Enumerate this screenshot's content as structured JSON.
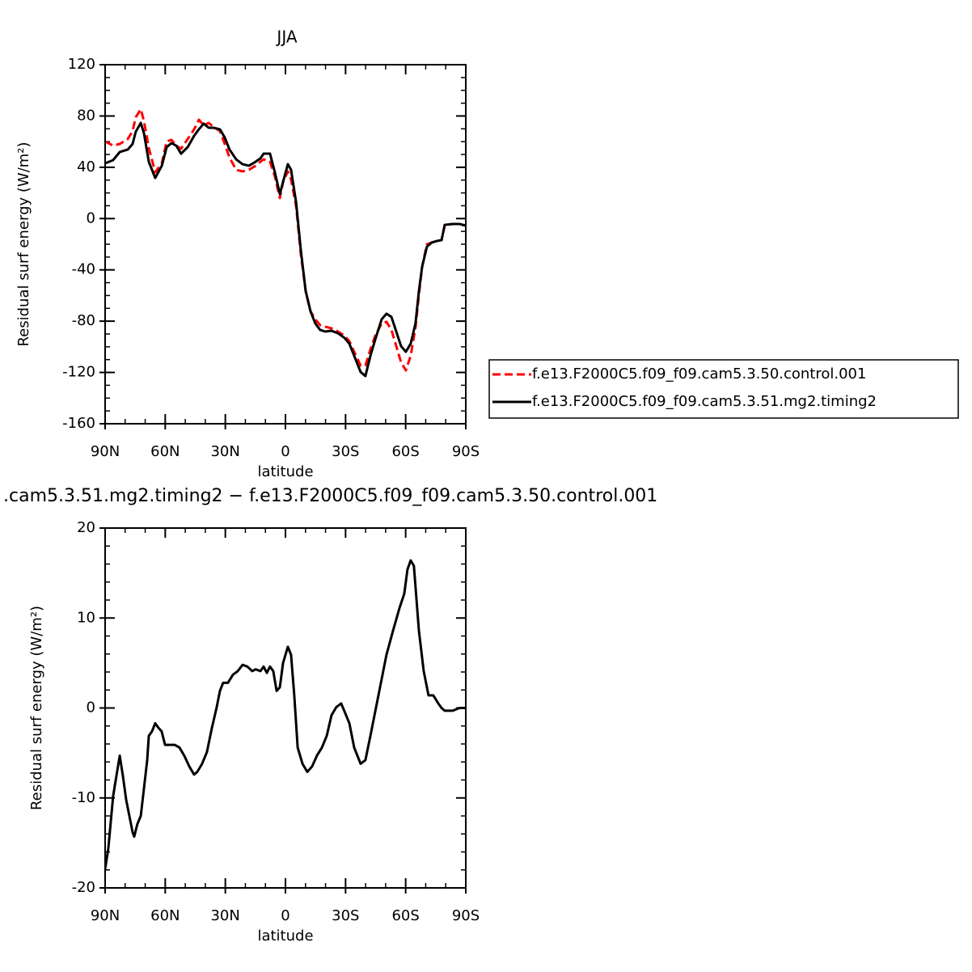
{
  "chart_data": [
    {
      "type": "line",
      "title": "JJA",
      "xlabel": "latitude",
      "ylabel": "Residual surf energy (W/m²)",
      "xlim": [
        90,
        -90
      ],
      "xticks": [
        {
          "value": 90,
          "label": "90N"
        },
        {
          "value": 60,
          "label": "60N"
        },
        {
          "value": 30,
          "label": "30N"
        },
        0,
        {
          "value": -30,
          "label": "30S"
        },
        {
          "value": -60,
          "label": "60S"
        },
        {
          "value": -90,
          "label": "90S"
        }
      ],
      "ylim": [
        -160,
        120
      ],
      "yticks": [
        -160,
        -120,
        -80,
        -40,
        0,
        40,
        80,
        120
      ],
      "legend": "right",
      "x": [
        90,
        86.0,
        82.7,
        78.7,
        76.3,
        74.7,
        72.2,
        70.6,
        68.2,
        65.0,
        61.7,
        59.3,
        56.9,
        54.5,
        52.1,
        48.8,
        45.6,
        43.2,
        40.8,
        38.3,
        35.9,
        32.7,
        30.3,
        27.9,
        24.6,
        21.4,
        18.2,
        14.9,
        12.5,
        10.9,
        7.7,
        5.3,
        2.8,
        1.2,
        -1.2,
        -2.8,
        -5.3,
        -7.7,
        -10.1,
        -12.5,
        -14.9,
        -17.3,
        -19.8,
        -23.0,
        -26.2,
        -29.5,
        -31.9,
        -34.3,
        -37.5,
        -39.9,
        -42.4,
        -44.8,
        -48.0,
        -50.4,
        -52.9,
        -55.3,
        -57.7,
        -60.1,
        -62.5,
        -64.9,
        -66.6,
        -68.2,
        -70.6,
        -73.0,
        -75.5,
        -77.9,
        -79.5,
        -83.5,
        -86.8,
        -90
      ],
      "series": [
        {
          "name": "f.e13.F2000C5.f09_f09.cam5.3.50.control.001",
          "color": "#ff0000",
          "line_style": "dashed",
          "values": [
            60.1,
            56.9,
            58.2,
            62.0,
            68.3,
            79.0,
            85.3,
            75.9,
            55.0,
            36.1,
            43.1,
            60.1,
            61.4,
            56.9,
            54.4,
            62.0,
            69.6,
            77.1,
            72.7,
            74.6,
            71.4,
            68.3,
            58.2,
            47.5,
            38.0,
            36.8,
            38.0,
            41.2,
            44.3,
            46.2,
            44.3,
            33.0,
            16.0,
            28.6,
            36.8,
            30.5,
            9.6,
            -28.2,
            -56.6,
            -72.3,
            -78.6,
            -83.1,
            -84.3,
            -85.6,
            -88.1,
            -91.3,
            -95.7,
            -103.9,
            -114.6,
            -114.6,
            -102.0,
            -91.3,
            -81.8,
            -80.5,
            -86.8,
            -99.5,
            -112.1,
            -118.4,
            -107.0,
            -84.9,
            -59.7,
            -37.7,
            -20.0,
            -18.7,
            -17.5,
            -16.8,
            -4.9,
            -4.2,
            -4.2,
            -5.5
          ]
        },
        {
          "name": "f.e13.F2000C5.f09_f09.cam5.3.51.mg2.timing2",
          "color": "#000000",
          "line_style": "solid",
          "values": [
            43.1,
            45.6,
            51.9,
            53.8,
            58.2,
            67.7,
            74.6,
            66.4,
            44.3,
            31.7,
            41.2,
            55.7,
            58.8,
            56.9,
            50.6,
            55.7,
            64.5,
            69.6,
            74.0,
            70.8,
            70.8,
            69.6,
            63.2,
            53.8,
            46.2,
            42.4,
            41.2,
            44.3,
            46.9,
            50.6,
            50.6,
            36.1,
            19.1,
            28.6,
            42.4,
            38.0,
            12.8,
            -25.0,
            -56.6,
            -72.3,
            -81.8,
            -86.8,
            -88.1,
            -87.5,
            -89.4,
            -93.1,
            -97.6,
            -107.0,
            -119.6,
            -122.8,
            -107.0,
            -94.4,
            -78.6,
            -74.2,
            -76.7,
            -88.1,
            -99.5,
            -103.9,
            -97.6,
            -81.8,
            -56.6,
            -37.7,
            -21.9,
            -18.7,
            -17.5,
            -16.8,
            -4.9,
            -4.2,
            -4.2,
            -5.5
          ]
        }
      ]
    },
    {
      "type": "line",
      "title": ".cam5.3.51.mg2.timing2 − f.e13.F2000C5.f09_f09.cam5.3.50.control.001",
      "xlabel": "latitude",
      "ylabel": "Residual surf energy (W/m²)",
      "xlim": [
        90,
        -90
      ],
      "xticks": [
        {
          "value": 90,
          "label": "90N"
        },
        {
          "value": 60,
          "label": "60N"
        },
        {
          "value": 30,
          "label": "30N"
        },
        0,
        {
          "value": -30,
          "label": "30S"
        },
        {
          "value": -60,
          "label": "60S"
        },
        {
          "value": -90,
          "label": "90S"
        }
      ],
      "ylim": [
        -20,
        20
      ],
      "yticks": [
        -20,
        -10,
        0,
        10,
        20
      ],
      "color": "#000000",
      "x": [
        90,
        88.4,
        86.0,
        84.4,
        82.7,
        81.1,
        79.5,
        77.9,
        76.3,
        75.5,
        73.9,
        72.2,
        70.6,
        69.0,
        68.2,
        66.6,
        65.0,
        63.4,
        61.8,
        60.1,
        57.7,
        55.3,
        52.9,
        50.5,
        48.0,
        45.6,
        44.0,
        41.6,
        39.2,
        36.7,
        34.3,
        32.7,
        31.1,
        28.7,
        26.2,
        23.8,
        21.4,
        19.0,
        16.6,
        14.9,
        12.5,
        10.9,
        9.3,
        7.7,
        6.1,
        4.4,
        2.8,
        1.2,
        -1.2,
        -2.8,
        -4.4,
        -6.1,
        -8.5,
        -10.9,
        -13.3,
        -15.7,
        -18.2,
        -20.6,
        -23.0,
        -25.4,
        -27.8,
        -29.5,
        -31.9,
        -34.3,
        -37.5,
        -39.9,
        -42.4,
        -44.8,
        -47.2,
        -50.4,
        -53.7,
        -56.9,
        -59.3,
        -60.9,
        -62.5,
        -64.1,
        -66.6,
        -69.0,
        -71.4,
        -73.8,
        -76.3,
        -77.9,
        -79.5,
        -83.5,
        -86.8,
        -90
      ],
      "values": [
        -17.9,
        -15.6,
        -9.8,
        -7.6,
        -5.3,
        -7.6,
        -10.2,
        -12.0,
        -13.8,
        -14.3,
        -12.9,
        -12.0,
        -8.9,
        -5.8,
        -3.1,
        -2.6,
        -1.7,
        -2.2,
        -2.6,
        -4.1,
        -4.1,
        -4.1,
        -4.4,
        -5.3,
        -6.5,
        -7.4,
        -7.1,
        -6.2,
        -4.9,
        -2.2,
        0.1,
        1.9,
        2.8,
        2.8,
        3.7,
        4.1,
        4.8,
        4.6,
        4.1,
        4.3,
        4.1,
        4.6,
        3.9,
        4.6,
        4.1,
        1.9,
        2.3,
        5.0,
        6.8,
        5.9,
        1.4,
        -4.4,
        -6.2,
        -7.1,
        -6.5,
        -5.3,
        -4.4,
        -3.1,
        -0.8,
        0.1,
        0.5,
        -0.4,
        -1.7,
        -4.4,
        -6.2,
        -5.8,
        -3.1,
        -0.4,
        2.3,
        5.9,
        8.6,
        11.1,
        12.7,
        15.4,
        16.4,
        15.8,
        8.6,
        4.1,
        1.4,
        1.4,
        0.5,
        0.0,
        -0.3,
        -0.3,
        0.0,
        0.0
      ]
    }
  ]
}
